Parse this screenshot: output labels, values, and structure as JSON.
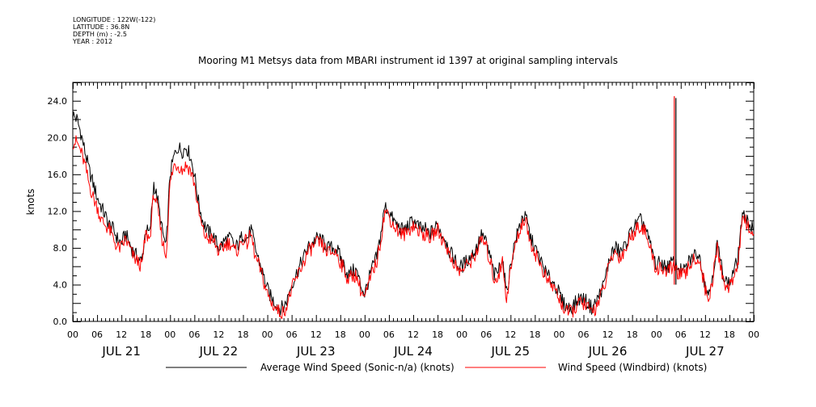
{
  "header": {
    "meta_lines": [
      "LONGITUDE : 122W(-122)",
      "LATITUDE : 36.8N",
      "DEPTH (m) : -2.5",
      "YEAR : 2012"
    ],
    "title": "Mooring M1 Metsys data from MBARI instrument id 1397 at original sampling intervals"
  },
  "chart_data": {
    "type": "line",
    "title": "Mooring M1 Metsys data from MBARI instrument id 1397 at original sampling intervals",
    "xlabel": "",
    "ylabel": "knots",
    "x_units": "hours since 2012-07-21 00:00",
    "xlim": [
      0,
      168
    ],
    "ylim": [
      0,
      26
    ],
    "y_ticks": [
      "0.0",
      "4.0",
      "8.0",
      "12.0",
      "16.0",
      "20.0",
      "24.0"
    ],
    "hour_tick_labels": [
      "00",
      "06",
      "12",
      "18",
      "00",
      "06",
      "12",
      "18",
      "00",
      "06",
      "12",
      "18",
      "00",
      "06",
      "12",
      "18",
      "00",
      "06",
      "12",
      "18",
      "00",
      "06",
      "12",
      "18",
      "00",
      "06",
      "12",
      "18",
      "00"
    ],
    "date_labels": [
      "JUL 21",
      "JUL 22",
      "JUL 23",
      "JUL 24",
      "JUL 25",
      "JUL 26",
      "JUL 27"
    ],
    "grid": false,
    "legend_position": "bottom",
    "series": [
      {
        "name": "Average Wind Speed (Sonic-n/a) (knots)",
        "color": "#000000",
        "x": [
          0,
          1,
          2,
          3,
          4,
          5,
          6,
          7,
          8,
          9,
          10,
          11,
          12,
          13,
          14,
          15,
          16,
          17,
          18,
          19,
          20,
          21,
          22,
          23,
          24,
          25,
          26,
          27,
          28,
          29,
          30,
          31,
          32,
          33,
          34,
          35,
          36,
          37,
          38,
          39,
          40,
          41,
          42,
          43,
          44,
          45,
          46,
          47,
          48,
          49,
          50,
          51,
          52,
          53,
          54,
          55,
          56,
          57,
          58,
          59,
          60,
          61,
          62,
          63,
          64,
          65,
          66,
          67,
          68,
          69,
          70,
          71,
          72,
          73,
          74,
          75,
          76,
          77,
          78,
          79,
          80,
          81,
          82,
          83,
          84,
          85,
          86,
          87,
          88,
          89,
          90,
          91,
          92,
          93,
          94,
          95,
          96,
          97,
          98,
          99,
          100,
          101,
          102,
          103,
          104,
          105,
          106,
          107,
          108,
          109,
          110,
          111,
          112,
          113,
          114,
          115,
          116,
          117,
          118,
          119,
          120,
          121,
          122,
          123,
          124,
          125,
          126,
          127,
          128,
          129,
          130,
          131,
          132,
          133,
          134,
          135,
          136,
          137,
          138,
          139,
          140,
          141,
          142,
          143,
          144,
          145,
          146,
          147,
          148,
          149,
          150,
          151,
          152,
          153,
          154,
          155,
          156,
          157,
          158,
          159,
          160,
          161,
          162,
          163,
          164,
          165,
          166,
          167,
          168
        ],
        "values": [
          22.5,
          22.0,
          20.5,
          18.5,
          16.5,
          15.0,
          13.5,
          12.5,
          11.5,
          10.5,
          10.0,
          9.0,
          8.5,
          9.5,
          8.5,
          7.5,
          7.0,
          6.5,
          10.0,
          9.5,
          15.0,
          13.0,
          10.0,
          8.0,
          16.0,
          18.0,
          19.0,
          18.5,
          19.0,
          18.0,
          16.0,
          13.0,
          11.0,
          10.0,
          9.5,
          9.0,
          8.0,
          8.5,
          9.0,
          9.0,
          8.0,
          8.5,
          9.5,
          9.0,
          10.0,
          8.0,
          6.5,
          5.0,
          3.5,
          2.5,
          2.0,
          1.5,
          1.5,
          2.5,
          4.0,
          5.0,
          6.0,
          7.0,
          8.0,
          8.5,
          9.0,
          9.0,
          8.5,
          8.0,
          8.0,
          8.0,
          7.0,
          6.0,
          5.0,
          5.5,
          5.5,
          4.0,
          3.0,
          4.5,
          6.0,
          7.0,
          9.5,
          12.5,
          12.0,
          11.0,
          10.5,
          10.0,
          10.0,
          10.5,
          11.0,
          10.5,
          10.0,
          10.0,
          9.5,
          10.0,
          10.5,
          9.5,
          9.0,
          7.5,
          7.0,
          6.0,
          6.0,
          6.5,
          7.0,
          7.5,
          8.5,
          9.5,
          8.5,
          7.0,
          5.0,
          5.5,
          7.0,
          3.0,
          6.0,
          8.5,
          10.0,
          11.5,
          11.0,
          9.0,
          8.0,
          7.0,
          6.0,
          5.0,
          4.5,
          4.0,
          3.0,
          2.0,
          1.5,
          1.5,
          2.0,
          2.5,
          2.5,
          2.0,
          1.5,
          2.0,
          3.0,
          4.0,
          6.0,
          7.5,
          8.0,
          7.5,
          8.0,
          9.0,
          10.0,
          10.5,
          11.0,
          10.5,
          9.0,
          7.5,
          6.0,
          6.5,
          6.0,
          6.0,
          6.5,
          6.0,
          5.5,
          5.5,
          6.5,
          7.0,
          7.5,
          6.5,
          4.0,
          3.0,
          5.5,
          8.5,
          6.0,
          4.5,
          4.0,
          5.5,
          6.5,
          11.0,
          11.5,
          10.5,
          10.0
        ],
        "spikes": [
          {
            "x": 148.8,
            "y": 24.3
          }
        ]
      },
      {
        "name": "Wind Speed (Windbird) (knots)",
        "color": "#ff0000",
        "x": [
          0,
          1,
          2,
          3,
          4,
          5,
          6,
          7,
          8,
          9,
          10,
          11,
          12,
          13,
          14,
          15,
          16,
          17,
          18,
          19,
          20,
          21,
          22,
          23,
          24,
          25,
          26,
          27,
          28,
          29,
          30,
          31,
          32,
          33,
          34,
          35,
          36,
          37,
          38,
          39,
          40,
          41,
          42,
          43,
          44,
          45,
          46,
          47,
          48,
          49,
          50,
          51,
          52,
          53,
          54,
          55,
          56,
          57,
          58,
          59,
          60,
          61,
          62,
          63,
          64,
          65,
          66,
          67,
          68,
          69,
          70,
          71,
          72,
          73,
          74,
          75,
          76,
          77,
          78,
          79,
          80,
          81,
          82,
          83,
          84,
          85,
          86,
          87,
          88,
          89,
          90,
          91,
          92,
          93,
          94,
          95,
          96,
          97,
          98,
          99,
          100,
          101,
          102,
          103,
          104,
          105,
          106,
          107,
          108,
          109,
          110,
          111,
          112,
          113,
          114,
          115,
          116,
          117,
          118,
          119,
          120,
          121,
          122,
          123,
          124,
          125,
          126,
          127,
          128,
          129,
          130,
          131,
          132,
          133,
          134,
          135,
          136,
          137,
          138,
          139,
          140,
          141,
          142,
          143,
          144,
          145,
          146,
          147,
          148,
          149,
          150,
          151,
          152,
          153,
          154,
          155,
          156,
          157,
          158,
          159,
          160,
          161,
          162,
          163,
          164,
          165,
          166,
          167,
          168
        ],
        "values": [
          19.5,
          19.5,
          18.5,
          17.0,
          15.0,
          13.5,
          12.5,
          11.0,
          10.5,
          10.0,
          9.0,
          8.0,
          8.0,
          9.0,
          8.0,
          7.0,
          6.5,
          6.0,
          9.5,
          9.0,
          14.0,
          12.0,
          9.0,
          7.0,
          15.0,
          17.0,
          17.0,
          16.5,
          17.0,
          16.5,
          15.0,
          12.0,
          10.0,
          9.0,
          9.0,
          8.5,
          7.5,
          8.0,
          8.5,
          8.5,
          7.5,
          8.0,
          9.0,
          8.5,
          9.5,
          7.0,
          6.0,
          4.5,
          3.0,
          2.0,
          1.5,
          1.0,
          1.0,
          2.0,
          3.5,
          4.5,
          5.5,
          6.5,
          7.5,
          8.0,
          8.5,
          8.5,
          8.0,
          7.5,
          7.5,
          7.5,
          6.5,
          5.5,
          4.5,
          5.0,
          5.0,
          3.5,
          2.5,
          4.0,
          5.5,
          6.5,
          9.0,
          12.0,
          11.5,
          10.5,
          10.0,
          9.5,
          9.5,
          10.0,
          10.5,
          10.0,
          9.5,
          9.5,
          9.0,
          9.5,
          10.0,
          9.0,
          8.5,
          7.0,
          6.5,
          5.5,
          5.5,
          6.0,
          6.5,
          7.0,
          8.0,
          9.0,
          8.0,
          6.5,
          4.5,
          5.0,
          6.5,
          2.5,
          5.5,
          8.0,
          9.5,
          11.0,
          10.5,
          8.5,
          7.5,
          6.5,
          5.5,
          4.5,
          4.0,
          3.5,
          2.5,
          1.5,
          1.0,
          1.0,
          1.5,
          2.0,
          2.0,
          1.5,
          1.0,
          1.5,
          2.5,
          3.5,
          5.5,
          7.0,
          7.5,
          7.0,
          7.5,
          8.5,
          9.5,
          10.0,
          10.5,
          10.0,
          8.5,
          7.0,
          5.5,
          6.0,
          5.5,
          5.5,
          6.0,
          5.5,
          5.0,
          5.0,
          6.0,
          6.5,
          7.0,
          6.0,
          3.5,
          2.5,
          5.0,
          8.0,
          5.5,
          4.0,
          3.5,
          5.0,
          6.0,
          10.5,
          11.0,
          10.0,
          9.5
        ],
        "spikes": [
          {
            "x": 148.4,
            "y": 24.5
          }
        ]
      }
    ]
  }
}
